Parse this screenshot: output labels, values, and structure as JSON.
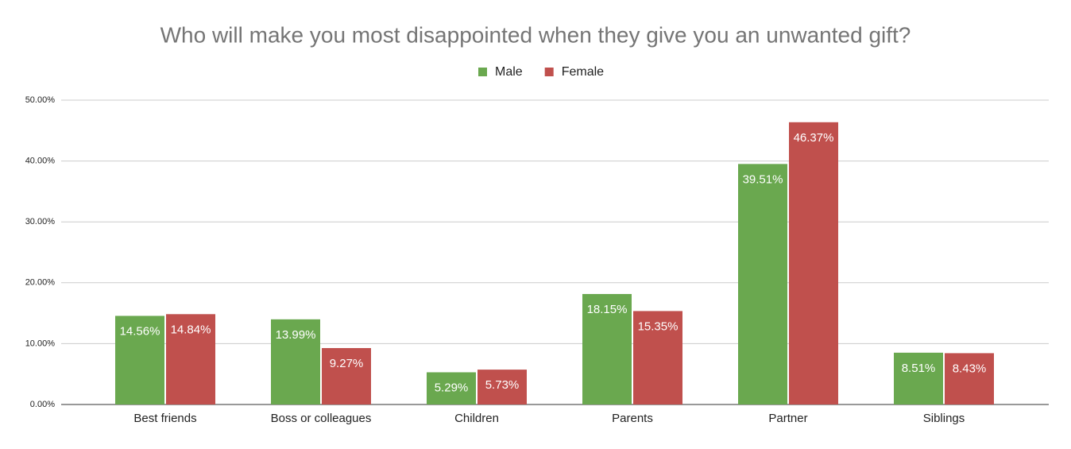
{
  "chart_data": {
    "type": "bar",
    "title": "Who will make you most disappointed when they give you an unwanted gift?",
    "categories": [
      "Best friends",
      "Boss or colleagues",
      "Children",
      "Parents",
      "Partner",
      "Siblings"
    ],
    "series": [
      {
        "name": "Male",
        "color": "#6aa84f",
        "values": [
          14.56,
          13.99,
          5.29,
          18.15,
          39.51,
          8.51
        ],
        "value_labels": [
          "14.56%",
          "13.99%",
          "5.29%",
          "18.15%",
          "39.51%",
          "8.51%"
        ]
      },
      {
        "name": "Female",
        "color": "#c0504d",
        "values": [
          14.84,
          9.27,
          5.73,
          15.35,
          46.37,
          8.43
        ],
        "value_labels": [
          "14.84%",
          "9.27%",
          "5.73%",
          "15.35%",
          "46.37%",
          "8.43%"
        ]
      }
    ],
    "ylim": [
      0,
      50
    ],
    "yticks": [
      {
        "value": 0,
        "label": "0.00%"
      },
      {
        "value": 10,
        "label": "10.00%"
      },
      {
        "value": 20,
        "label": "20.00%"
      },
      {
        "value": 30,
        "label": "30.00%"
      },
      {
        "value": 40,
        "label": "40.00%"
      },
      {
        "value": 50,
        "label": "50.00%"
      }
    ],
    "grid": true,
    "legend": "top"
  }
}
